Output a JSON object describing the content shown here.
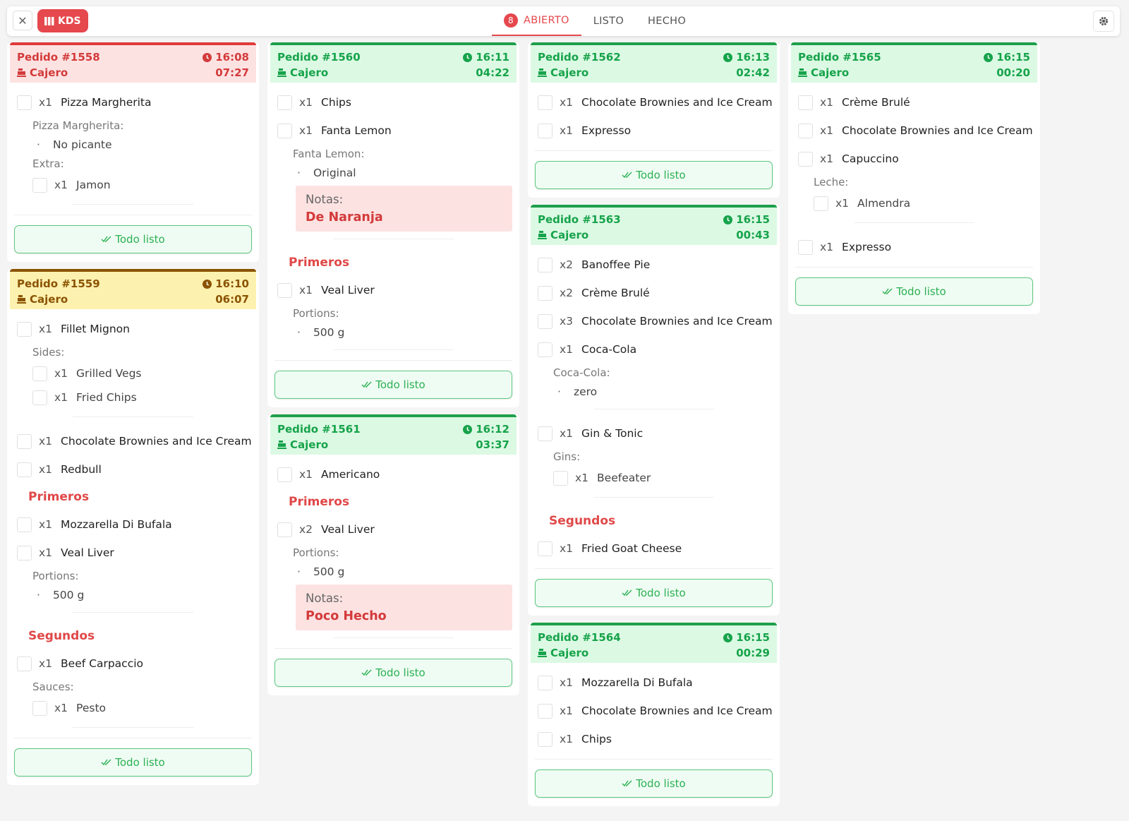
{
  "header": {
    "brand": "KDS",
    "tabs": [
      {
        "badge": "8",
        "label": "ABIERTO"
      },
      {
        "label": "LISTO"
      },
      {
        "label": "HECHO"
      }
    ]
  },
  "columns": [
    [
      {
        "number": "Pedido #1558",
        "time": "16:08",
        "source": "Cajero",
        "elapsed": "07:27",
        "color": "red",
        "button": "Todo listo",
        "items": [
          {
            "qty": "x1",
            "name": "Pizza Margherita",
            "groups": [
              {
                "label": "Pizza Margherita:",
                "options": [
                  "No picante"
                ]
              },
              {
                "label": "Extra:",
                "options": [
                  {
                    "qty": "x1",
                    "name": "Jamon"
                  }
                ]
              }
            ]
          }
        ]
      },
      {
        "number": "Pedido #1559",
        "time": "16:10",
        "source": "Cajero",
        "elapsed": "06:07",
        "color": "yellow",
        "button": "Todo listo",
        "items": [
          {
            "qty": "x1",
            "name": "Fillet Mignon",
            "groups": [
              {
                "label": "Sides:",
                "options": [
                  {
                    "qty": "x1",
                    "name": "Grilled Vegs"
                  },
                  {
                    "qty": "x1",
                    "name": "Fried Chips"
                  }
                ]
              }
            ]
          },
          {
            "qty": "x1",
            "name": "Chocolate Brownies and Ice Cream"
          },
          {
            "qty": "x1",
            "name": "Redbull"
          },
          {
            "section": "Primeros"
          },
          {
            "qty": "x1",
            "name": "Mozzarella Di Bufala"
          },
          {
            "qty": "x1",
            "name": "Veal Liver",
            "groups": [
              {
                "label": "Portions:",
                "options": [
                  "500 g"
                ]
              }
            ]
          },
          {
            "section": "Segundos"
          },
          {
            "qty": "x1",
            "name": "Beef Carpaccio",
            "groups": [
              {
                "label": "Sauces:",
                "options": [
                  {
                    "qty": "x1",
                    "name": "Pesto"
                  }
                ]
              }
            ]
          }
        ]
      }
    ],
    [
      {
        "number": "Pedido #1560",
        "time": "16:11",
        "source": "Cajero",
        "elapsed": "04:22",
        "color": "green",
        "button": "Todo listo",
        "items": [
          {
            "qty": "x1",
            "name": "Chips"
          },
          {
            "qty": "x1",
            "name": "Fanta Lemon",
            "groups": [
              {
                "label": "Fanta Lemon:",
                "options": [
                  "Original"
                ]
              }
            ],
            "note": {
              "label": "Notas:",
              "text": "De Naranja"
            }
          },
          {
            "section": "Primeros"
          },
          {
            "qty": "x1",
            "name": "Veal Liver",
            "groups": [
              {
                "label": "Portions:",
                "options": [
                  "500 g"
                ]
              }
            ]
          }
        ]
      },
      {
        "number": "Pedido #1561",
        "time": "16:12",
        "source": "Cajero",
        "elapsed": "03:37",
        "color": "green",
        "button": "Todo listo",
        "items": [
          {
            "qty": "x1",
            "name": "Americano"
          },
          {
            "section": "Primeros"
          },
          {
            "qty": "x2",
            "name": "Veal Liver",
            "groups": [
              {
                "label": "Portions:",
                "options": [
                  "500 g"
                ]
              }
            ],
            "note": {
              "label": "Notas:",
              "text": "Poco Hecho"
            }
          }
        ]
      }
    ],
    [
      {
        "number": "Pedido #1562",
        "time": "16:13",
        "source": "Cajero",
        "elapsed": "02:42",
        "color": "green",
        "button": "Todo listo",
        "items": [
          {
            "qty": "x1",
            "name": "Chocolate Brownies and Ice Cream"
          },
          {
            "qty": "x1",
            "name": "Expresso"
          }
        ]
      },
      {
        "number": "Pedido #1563",
        "time": "16:15",
        "source": "Cajero",
        "elapsed": "00:43",
        "color": "green",
        "button": "Todo listo",
        "items": [
          {
            "qty": "x2",
            "name": "Banoffee Pie"
          },
          {
            "qty": "x2",
            "name": "Crème Brulé"
          },
          {
            "qty": "x3",
            "name": "Chocolate Brownies and Ice Cream"
          },
          {
            "qty": "x1",
            "name": "Coca-Cola",
            "groups": [
              {
                "label": "Coca-Cola:",
                "options": [
                  "zero"
                ]
              }
            ]
          },
          {
            "qty": "x1",
            "name": "Gin & Tonic",
            "groups": [
              {
                "label": "Gins:",
                "options": [
                  {
                    "qty": "x1",
                    "name": "Beefeater"
                  }
                ]
              }
            ]
          },
          {
            "section": "Segundos"
          },
          {
            "qty": "x1",
            "name": "Fried Goat Cheese"
          }
        ]
      },
      {
        "number": "Pedido #1564",
        "time": "16:15",
        "source": "Cajero",
        "elapsed": "00:29",
        "color": "green",
        "button": "Todo listo",
        "items": [
          {
            "qty": "x1",
            "name": "Mozzarella Di Bufala"
          },
          {
            "qty": "x1",
            "name": "Chocolate Brownies and Ice Cream"
          },
          {
            "qty": "x1",
            "name": "Chips"
          }
        ]
      }
    ],
    [
      {
        "number": "Pedido #1565",
        "time": "16:15",
        "source": "Cajero",
        "elapsed": "00:20",
        "color": "green",
        "button": "Todo listo",
        "items": [
          {
            "qty": "x1",
            "name": "Crème Brulé"
          },
          {
            "qty": "x1",
            "name": "Chocolate Brownies and Ice Cream"
          },
          {
            "qty": "x1",
            "name": "Capuccino",
            "groups": [
              {
                "label": "Leche:",
                "options": [
                  {
                    "qty": "x1",
                    "name": "Almendra"
                  }
                ]
              }
            ]
          },
          {
            "qty": "x1",
            "name": "Expresso"
          }
        ]
      }
    ]
  ]
}
